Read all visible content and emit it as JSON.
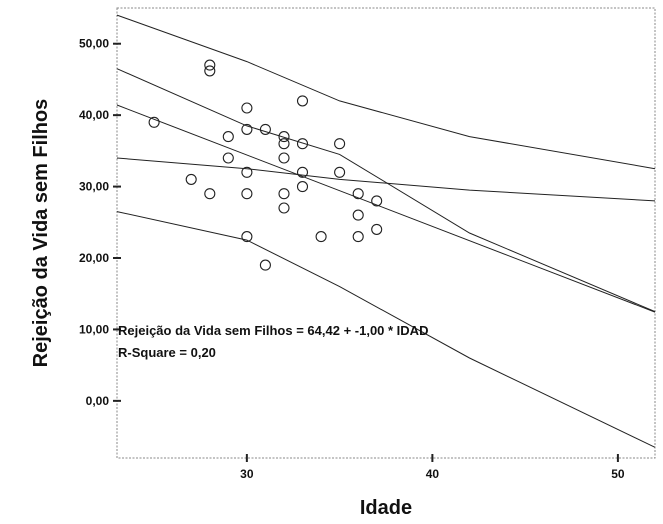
{
  "chart_data": {
    "type": "scatter",
    "title": "",
    "xlabel": "Idade",
    "ylabel": "Rejeição da Vida sem Filhos",
    "xlim": [
      23,
      52
    ],
    "ylim": [
      -8,
      55
    ],
    "x_ticks": [
      "30",
      "40",
      "50"
    ],
    "y_ticks": [
      "0,00",
      "10,00",
      "20,00",
      "30,00",
      "40,00",
      "50,00"
    ],
    "grid": false,
    "points": [
      {
        "x": 25,
        "y": 39
      },
      {
        "x": 27,
        "y": 31
      },
      {
        "x": 28,
        "y": 47
      },
      {
        "x": 28,
        "y": 46.2
      },
      {
        "x": 28,
        "y": 29
      },
      {
        "x": 29,
        "y": 37
      },
      {
        "x": 29,
        "y": 34
      },
      {
        "x": 30,
        "y": 41
      },
      {
        "x": 30,
        "y": 38
      },
      {
        "x": 30,
        "y": 32
      },
      {
        "x": 30,
        "y": 29
      },
      {
        "x": 30,
        "y": 23
      },
      {
        "x": 31,
        "y": 38
      },
      {
        "x": 31,
        "y": 19
      },
      {
        "x": 32,
        "y": 37
      },
      {
        "x": 32,
        "y": 36
      },
      {
        "x": 32,
        "y": 34
      },
      {
        "x": 32,
        "y": 29
      },
      {
        "x": 32,
        "y": 27
      },
      {
        "x": 33,
        "y": 42
      },
      {
        "x": 33,
        "y": 36
      },
      {
        "x": 33,
        "y": 32
      },
      {
        "x": 33,
        "y": 30
      },
      {
        "x": 34,
        "y": 23
      },
      {
        "x": 35,
        "y": 36
      },
      {
        "x": 35,
        "y": 32
      },
      {
        "x": 36,
        "y": 29
      },
      {
        "x": 36,
        "y": 26
      },
      {
        "x": 36,
        "y": 23
      },
      {
        "x": 37,
        "y": 28
      },
      {
        "x": 37,
        "y": 24
      }
    ],
    "regression": {
      "intercept": 64.42,
      "slope": -1.0
    },
    "mean_ci_lower": [
      [
        23,
        34
      ],
      [
        30,
        32.5
      ],
      [
        35,
        31
      ],
      [
        42,
        29.5
      ],
      [
        52,
        28
      ]
    ],
    "mean_ci_upper": [
      [
        23,
        46.5
      ],
      [
        30,
        38.5
      ],
      [
        35,
        34.5
      ],
      [
        42,
        23.5
      ],
      [
        52,
        12.5
      ]
    ],
    "indiv_ci_upper": [
      [
        23,
        54
      ],
      [
        30,
        47.5
      ],
      [
        35,
        42
      ],
      [
        42,
        37
      ],
      [
        52,
        32.5
      ]
    ],
    "indiv_ci_lower": [
      [
        23,
        26.5
      ],
      [
        30,
        22.5
      ],
      [
        35,
        16
      ],
      [
        42,
        6
      ],
      [
        52,
        -6.5
      ]
    ],
    "annotations": [
      "Rejeição da Vida sem Filhos = 64,42 + -1,00 * IDAD",
      "R-Square = 0,20"
    ]
  }
}
